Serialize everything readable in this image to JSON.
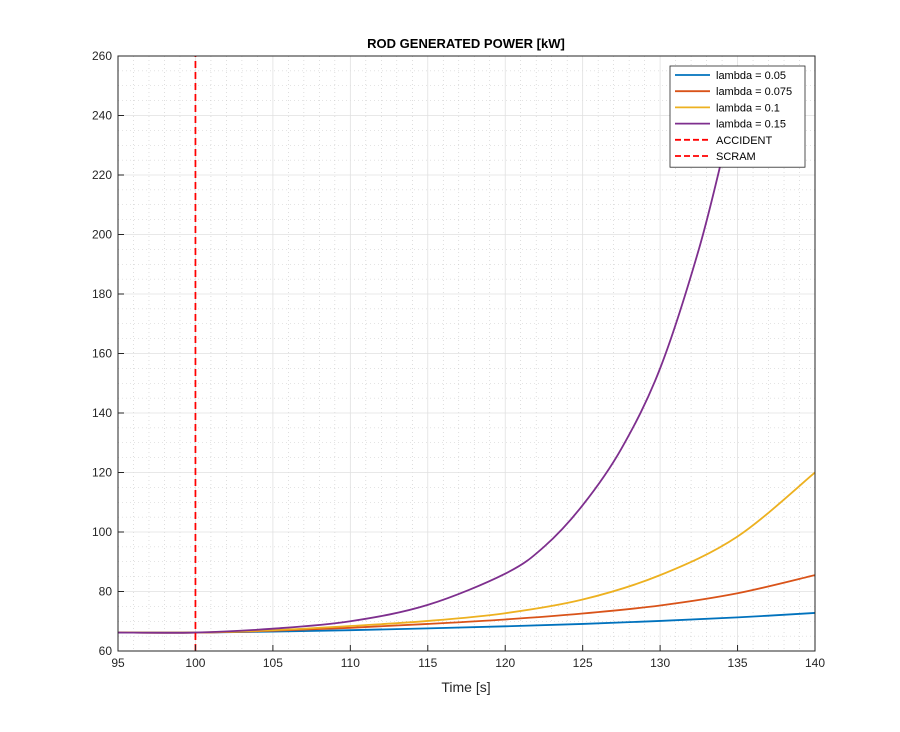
{
  "chart_data": {
    "type": "line",
    "title": "ROD GENERATED POWER [kW]",
    "xlabel": "Time [s]",
    "ylabel": "",
    "xlim": [
      95,
      140
    ],
    "ylim": [
      60,
      260
    ],
    "x_ticks": [
      95,
      100,
      105,
      110,
      115,
      120,
      125,
      130,
      135,
      140
    ],
    "y_ticks": [
      60,
      80,
      100,
      120,
      140,
      160,
      180,
      200,
      220,
      240,
      260
    ],
    "grid": true,
    "minor_grid": true,
    "legend_position": "top-right",
    "series": [
      {
        "name": "lambda = 0.05",
        "color": "#0072BD",
        "style": "solid",
        "x": [
          95,
          100,
          105,
          110,
          115,
          120,
          125,
          130,
          135,
          140
        ],
        "y": [
          66.2,
          66.2,
          66.5,
          67.0,
          67.6,
          68.3,
          69.1,
          70.1,
          71.3,
          72.8
        ]
      },
      {
        "name": "lambda = 0.075",
        "color": "#D95319",
        "style": "solid",
        "x": [
          95,
          100,
          105,
          110,
          115,
          120,
          125,
          130,
          135,
          140
        ],
        "y": [
          66.2,
          66.2,
          66.8,
          67.8,
          69.1,
          70.6,
          72.6,
          75.3,
          79.4,
          85.5
        ]
      },
      {
        "name": "lambda = 0.1",
        "color": "#EDB120",
        "style": "solid",
        "x": [
          95,
          100,
          105,
          110,
          115,
          120,
          125,
          130,
          135,
          140
        ],
        "y": [
          66.2,
          66.2,
          67.0,
          68.4,
          70.1,
          72.7,
          77.3,
          85.5,
          98.5,
          120.0
        ]
      },
      {
        "name": "lambda = 0.15",
        "color": "#7E2F8E",
        "style": "solid",
        "x": [
          95,
          100,
          105,
          110,
          115,
          120,
          122.5,
          125,
          127.5,
          130,
          132.5,
          134.2
        ],
        "y": [
          66.2,
          66.2,
          67.5,
          70.0,
          75.5,
          86.0,
          95.0,
          109.0,
          128.0,
          155.0,
          195.0,
          230.0
        ]
      },
      {
        "name": "ACCIDENT",
        "color": "#FF0000",
        "style": "dashed",
        "x": [
          100,
          100
        ],
        "y": [
          60,
          260
        ]
      },
      {
        "name": "SCRAM",
        "color": "#FF0000",
        "style": "dashed",
        "x": [
          100,
          100
        ],
        "y": [
          60,
          260
        ]
      }
    ]
  }
}
